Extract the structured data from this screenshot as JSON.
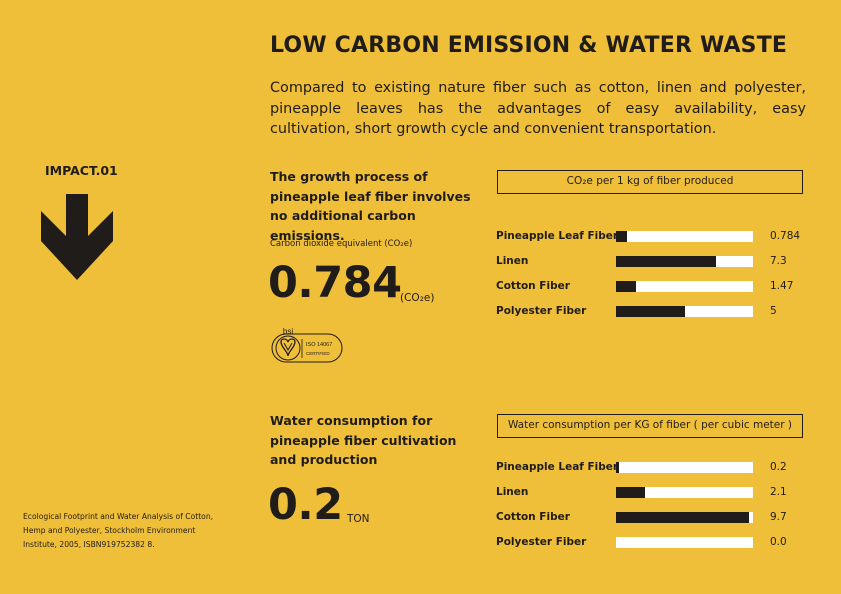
{
  "title": "LOW CARBON EMISSION & WATER WASTE",
  "intro": "Compared to existing nature fiber such as cotton, linen and polyester, pineapple leaves has the advantages of easy availability, easy cultivation, short growth cycle and convenient transportation.",
  "impact_label": "IMPACT.01",
  "icons": {
    "arrow": "arrow-down-icon",
    "certification": "bsi-iso-14067-certified-icon"
  },
  "carbon": {
    "heading": "The growth process of pineapple leaf fiber involves no additional carbon emissions.",
    "sublabel": "Carbon dioxide equivalent (CO₂e)",
    "value": "0.784",
    "unit": "(CO₂e)",
    "cert_brand": "bsi",
    "cert_line1": "ISO 14067",
    "cert_line2": "CERTIFIED",
    "chart_title": "CO₂e per 1 kg of fiber produced"
  },
  "water": {
    "heading": "Water consumption for pineapple fiber cultivation and production",
    "value": "0.2",
    "unit": "TON",
    "chart_title": "Water consumption per KG of fiber ( per cubic meter )"
  },
  "source": "Ecological Footprint and Water Analysis of Cotton, Hemp and Polyester, Stockholm Environment Institute, 2005, ISBN919752382 8.",
  "chart_data": [
    {
      "type": "bar",
      "title": "CO₂e per 1 kg of fiber produced",
      "categories": [
        "Pineapple Leaf Fiber",
        "Linen",
        "Cotton Fiber",
        "Polyester Fiber"
      ],
      "values": [
        0.784,
        7.3,
        1.47,
        5
      ],
      "labels": [
        "0.784",
        "7.3",
        "1.47",
        "5"
      ],
      "xlim": [
        0,
        10
      ]
    },
    {
      "type": "bar",
      "title": "Water consumption per KG of fiber ( per cubic meter )",
      "categories": [
        "Pineapple Leaf Fiber",
        "Linen",
        "Cotton Fiber",
        "Polyester Fiber"
      ],
      "values": [
        0.2,
        2.1,
        9.7,
        0.0
      ],
      "labels": [
        "0.2",
        "2.1",
        "9.7",
        "0.0"
      ],
      "xlim": [
        0,
        10
      ]
    }
  ],
  "colors": {
    "background": "#f0bf3a",
    "ink": "#1f1c19",
    "track": "#ffffff"
  }
}
